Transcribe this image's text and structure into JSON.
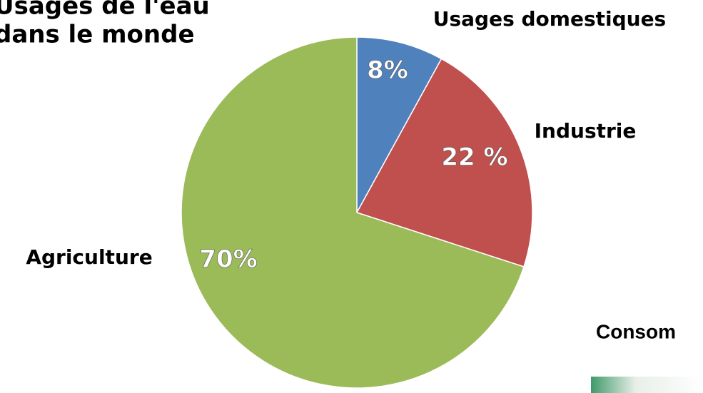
{
  "chart_data": {
    "type": "pie",
    "title_lines": [
      "Usages de l'eau",
      "dans le monde"
    ],
    "categories": [
      "Usages domestiques",
      "Industrie",
      "Agriculture"
    ],
    "values": [
      8,
      22,
      70
    ],
    "value_labels": [
      "8%",
      "22 %",
      "70%"
    ],
    "colors": [
      "#4f81bd",
      "#c0504d",
      "#9bbb59"
    ],
    "annotation": "Consom"
  }
}
